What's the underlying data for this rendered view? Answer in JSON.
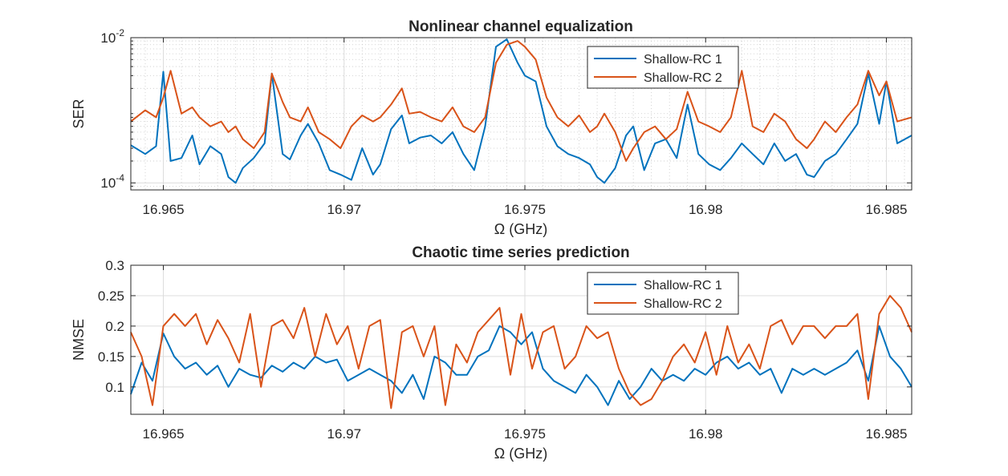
{
  "chart_data": [
    {
      "type": "line",
      "title": "Nonlinear channel equalization",
      "xlabel": "Ω (GHz)",
      "ylabel": "SER",
      "yscale": "log",
      "xlim": [
        16.9641,
        16.9857
      ],
      "ylim": [
        8e-05,
        0.01
      ],
      "grid": true,
      "minor_grid": true,
      "xticks": [
        16.965,
        16.97,
        16.975,
        16.98,
        16.985
      ],
      "xtick_labels": [
        "16.965",
        "16.97",
        "16.975",
        "16.98",
        "16.985"
      ],
      "yticks": [
        {
          "value": 0.0001,
          "base": "10",
          "exp": "-4"
        },
        {
          "value": 0.01,
          "base": "10",
          "exp": "-2"
        }
      ],
      "legend_position": "top-right",
      "series": [
        {
          "name": "Shallow-RC 1",
          "color": "#0072BD",
          "x": [
            16.9641,
            16.9645,
            16.9648,
            16.965,
            16.9652,
            16.9655,
            16.9658,
            16.966,
            16.9663,
            16.9666,
            16.9668,
            16.967,
            16.9672,
            16.9675,
            16.9678,
            16.968,
            16.9683,
            16.9685,
            16.9688,
            16.969,
            16.9693,
            16.9696,
            16.9699,
            16.9702,
            16.9705,
            16.9708,
            16.971,
            16.9713,
            16.9716,
            16.9718,
            16.9721,
            16.9724,
            16.9727,
            16.973,
            16.9733,
            16.9736,
            16.9739,
            16.9742,
            16.9745,
            16.9748,
            16.975,
            16.9753,
            16.9756,
            16.9759,
            16.9762,
            16.9765,
            16.9768,
            16.977,
            16.9772,
            16.9775,
            16.9778,
            16.978,
            16.9783,
            16.9786,
            16.9789,
            16.9792,
            16.9795,
            16.9798,
            16.9801,
            16.9804,
            16.9807,
            16.981,
            16.9813,
            16.9816,
            16.9819,
            16.9822,
            16.9825,
            16.9828,
            16.983,
            16.9833,
            16.9836,
            16.9839,
            16.9842,
            16.9845,
            16.9848,
            16.985,
            16.9853,
            16.9857
          ],
          "values": [
            0.00033,
            0.00025,
            0.00032,
            0.0034,
            0.0002,
            0.00022,
            0.00045,
            0.00018,
            0.00032,
            0.00025,
            0.00012,
            0.0001,
            0.00016,
            0.00022,
            0.00035,
            0.0032,
            0.00025,
            0.00021,
            0.00045,
            0.00065,
            0.00035,
            0.00015,
            0.00013,
            0.00011,
            0.0003,
            0.00013,
            0.00018,
            0.00055,
            0.00085,
            0.00035,
            0.00042,
            0.00045,
            0.00035,
            0.0005,
            0.00025,
            0.00015,
            0.0006,
            0.0075,
            0.0095,
            0.0045,
            0.003,
            0.0025,
            0.0006,
            0.00032,
            0.00025,
            0.00022,
            0.00018,
            0.00012,
            0.0001,
            0.00016,
            0.00045,
            0.0006,
            0.00015,
            0.00035,
            0.0004,
            0.00022,
            0.0012,
            0.00025,
            0.00018,
            0.00015,
            0.00022,
            0.00035,
            0.00025,
            0.00018,
            0.00035,
            0.0002,
            0.00025,
            0.00013,
            0.00012,
            0.0002,
            0.00025,
            0.0004,
            0.00065,
            0.0032,
            0.00065,
            0.0025,
            0.00035,
            0.00045
          ]
        },
        {
          "name": "Shallow-RC 2",
          "color": "#D95319",
          "x": [
            16.9641,
            16.9645,
            16.9648,
            16.965,
            16.9652,
            16.9655,
            16.9658,
            16.966,
            16.9663,
            16.9666,
            16.9668,
            16.967,
            16.9672,
            16.9675,
            16.9678,
            16.968,
            16.9683,
            16.9685,
            16.9688,
            16.969,
            16.9693,
            16.9696,
            16.9699,
            16.9702,
            16.9705,
            16.9708,
            16.971,
            16.9713,
            16.9716,
            16.9718,
            16.9721,
            16.9724,
            16.9727,
            16.973,
            16.9733,
            16.9736,
            16.9739,
            16.9742,
            16.9745,
            16.9748,
            16.975,
            16.9753,
            16.9756,
            16.9759,
            16.9762,
            16.9765,
            16.9768,
            16.977,
            16.9772,
            16.9775,
            16.9778,
            16.978,
            16.9783,
            16.9786,
            16.9789,
            16.9792,
            16.9795,
            16.9798,
            16.9801,
            16.9804,
            16.9807,
            16.981,
            16.9813,
            16.9816,
            16.9819,
            16.9822,
            16.9825,
            16.9828,
            16.983,
            16.9833,
            16.9836,
            16.9839,
            16.9842,
            16.9845,
            16.9848,
            16.985,
            16.9853,
            16.9857
          ],
          "values": [
            0.0007,
            0.001,
            0.0008,
            0.0015,
            0.0035,
            0.0009,
            0.0011,
            0.0008,
            0.0006,
            0.0007,
            0.0005,
            0.0006,
            0.0004,
            0.0003,
            0.0005,
            0.0032,
            0.0013,
            0.0008,
            0.0007,
            0.0011,
            0.0005,
            0.0004,
            0.0003,
            0.0006,
            0.00085,
            0.0007,
            0.0008,
            0.0012,
            0.002,
            0.0009,
            0.00095,
            0.0008,
            0.0007,
            0.0011,
            0.0006,
            0.0005,
            0.0008,
            0.0045,
            0.008,
            0.009,
            0.0075,
            0.005,
            0.0015,
            0.0008,
            0.0006,
            0.00085,
            0.0005,
            0.0006,
            0.0009,
            0.0005,
            0.0002,
            0.0003,
            0.0005,
            0.0006,
            0.0004,
            0.00055,
            0.0018,
            0.0007,
            0.0006,
            0.0005,
            0.0008,
            0.0035,
            0.0006,
            0.0005,
            0.0009,
            0.0007,
            0.0004,
            0.0003,
            0.0004,
            0.0007,
            0.0005,
            0.0008,
            0.0012,
            0.0035,
            0.0016,
            0.0025,
            0.0007,
            0.0008
          ]
        }
      ]
    },
    {
      "type": "line",
      "title": "Chaotic time series prediction",
      "xlabel": "Ω (GHz)",
      "ylabel": "NMSE",
      "xlim": [
        16.9641,
        16.9857
      ],
      "ylim": [
        0.055,
        0.3
      ],
      "grid": true,
      "xticks": [
        16.965,
        16.97,
        16.975,
        16.98,
        16.985
      ],
      "xtick_labels": [
        "16.965",
        "16.97",
        "16.975",
        "16.98",
        "16.985"
      ],
      "yticks": [
        0.1,
        0.15,
        0.2,
        0.25,
        0.3
      ],
      "ytick_labels": [
        "0.1",
        "0.15",
        "0.2",
        "0.25",
        "0.3"
      ],
      "legend_position": "top-right",
      "series": [
        {
          "name": "Shallow-RC 1",
          "color": "#0072BD",
          "x": [
            16.9641,
            16.9644,
            16.9647,
            16.965,
            16.9653,
            16.9656,
            16.9659,
            16.9662,
            16.9665,
            16.9668,
            16.9671,
            16.9674,
            16.9677,
            16.968,
            16.9683,
            16.9686,
            16.9689,
            16.9692,
            16.9695,
            16.9698,
            16.9701,
            16.9704,
            16.9707,
            16.971,
            16.9713,
            16.9716,
            16.9719,
            16.9722,
            16.9725,
            16.9728,
            16.9731,
            16.9734,
            16.9737,
            16.974,
            16.9743,
            16.9746,
            16.9749,
            16.9752,
            16.9755,
            16.9758,
            16.9761,
            16.9764,
            16.9767,
            16.977,
            16.9773,
            16.9776,
            16.9779,
            16.9782,
            16.9785,
            16.9788,
            16.9791,
            16.9794,
            16.9797,
            16.98,
            16.9803,
            16.9806,
            16.9809,
            16.9812,
            16.9815,
            16.9818,
            16.9821,
            16.9824,
            16.9827,
            16.983,
            16.9833,
            16.9836,
            16.9839,
            16.9842,
            16.9845,
            16.9848,
            16.9851,
            16.9854,
            16.9857
          ],
          "values": [
            0.088,
            0.14,
            0.11,
            0.188,
            0.15,
            0.13,
            0.14,
            0.12,
            0.135,
            0.1,
            0.13,
            0.12,
            0.115,
            0.135,
            0.125,
            0.14,
            0.13,
            0.15,
            0.14,
            0.145,
            0.11,
            0.12,
            0.13,
            0.12,
            0.11,
            0.09,
            0.12,
            0.08,
            0.15,
            0.14,
            0.12,
            0.12,
            0.15,
            0.16,
            0.2,
            0.19,
            0.17,
            0.19,
            0.13,
            0.11,
            0.1,
            0.09,
            0.12,
            0.1,
            0.07,
            0.11,
            0.08,
            0.1,
            0.13,
            0.11,
            0.12,
            0.11,
            0.13,
            0.12,
            0.14,
            0.15,
            0.13,
            0.14,
            0.12,
            0.13,
            0.09,
            0.13,
            0.12,
            0.13,
            0.12,
            0.13,
            0.14,
            0.16,
            0.11,
            0.2,
            0.15,
            0.13,
            0.1
          ]
        },
        {
          "name": "Shallow-RC 2",
          "color": "#D95319",
          "x": [
            16.9641,
            16.9644,
            16.9647,
            16.965,
            16.9653,
            16.9656,
            16.9659,
            16.9662,
            16.9665,
            16.9668,
            16.9671,
            16.9674,
            16.9677,
            16.968,
            16.9683,
            16.9686,
            16.9689,
            16.9692,
            16.9695,
            16.9698,
            16.9701,
            16.9704,
            16.9707,
            16.971,
            16.9713,
            16.9716,
            16.9719,
            16.9722,
            16.9725,
            16.9728,
            16.9731,
            16.9734,
            16.9737,
            16.974,
            16.9743,
            16.9746,
            16.9749,
            16.9752,
            16.9755,
            16.9758,
            16.9761,
            16.9764,
            16.9767,
            16.977,
            16.9773,
            16.9776,
            16.9779,
            16.9782,
            16.9785,
            16.9788,
            16.9791,
            16.9794,
            16.9797,
            16.98,
            16.9803,
            16.9806,
            16.9809,
            16.9812,
            16.9815,
            16.9818,
            16.9821,
            16.9824,
            16.9827,
            16.983,
            16.9833,
            16.9836,
            16.9839,
            16.9842,
            16.9845,
            16.9848,
            16.9851,
            16.9854,
            16.9857
          ],
          "values": [
            0.19,
            0.15,
            0.07,
            0.2,
            0.22,
            0.2,
            0.22,
            0.17,
            0.21,
            0.18,
            0.14,
            0.22,
            0.1,
            0.2,
            0.21,
            0.18,
            0.23,
            0.15,
            0.22,
            0.17,
            0.2,
            0.13,
            0.2,
            0.21,
            0.065,
            0.19,
            0.2,
            0.15,
            0.2,
            0.07,
            0.17,
            0.14,
            0.19,
            0.21,
            0.23,
            0.12,
            0.22,
            0.13,
            0.19,
            0.2,
            0.13,
            0.15,
            0.2,
            0.18,
            0.19,
            0.13,
            0.09,
            0.07,
            0.08,
            0.11,
            0.15,
            0.17,
            0.14,
            0.19,
            0.12,
            0.2,
            0.14,
            0.17,
            0.13,
            0.2,
            0.21,
            0.17,
            0.2,
            0.2,
            0.18,
            0.2,
            0.2,
            0.22,
            0.08,
            0.22,
            0.25,
            0.23,
            0.19
          ]
        }
      ]
    }
  ]
}
